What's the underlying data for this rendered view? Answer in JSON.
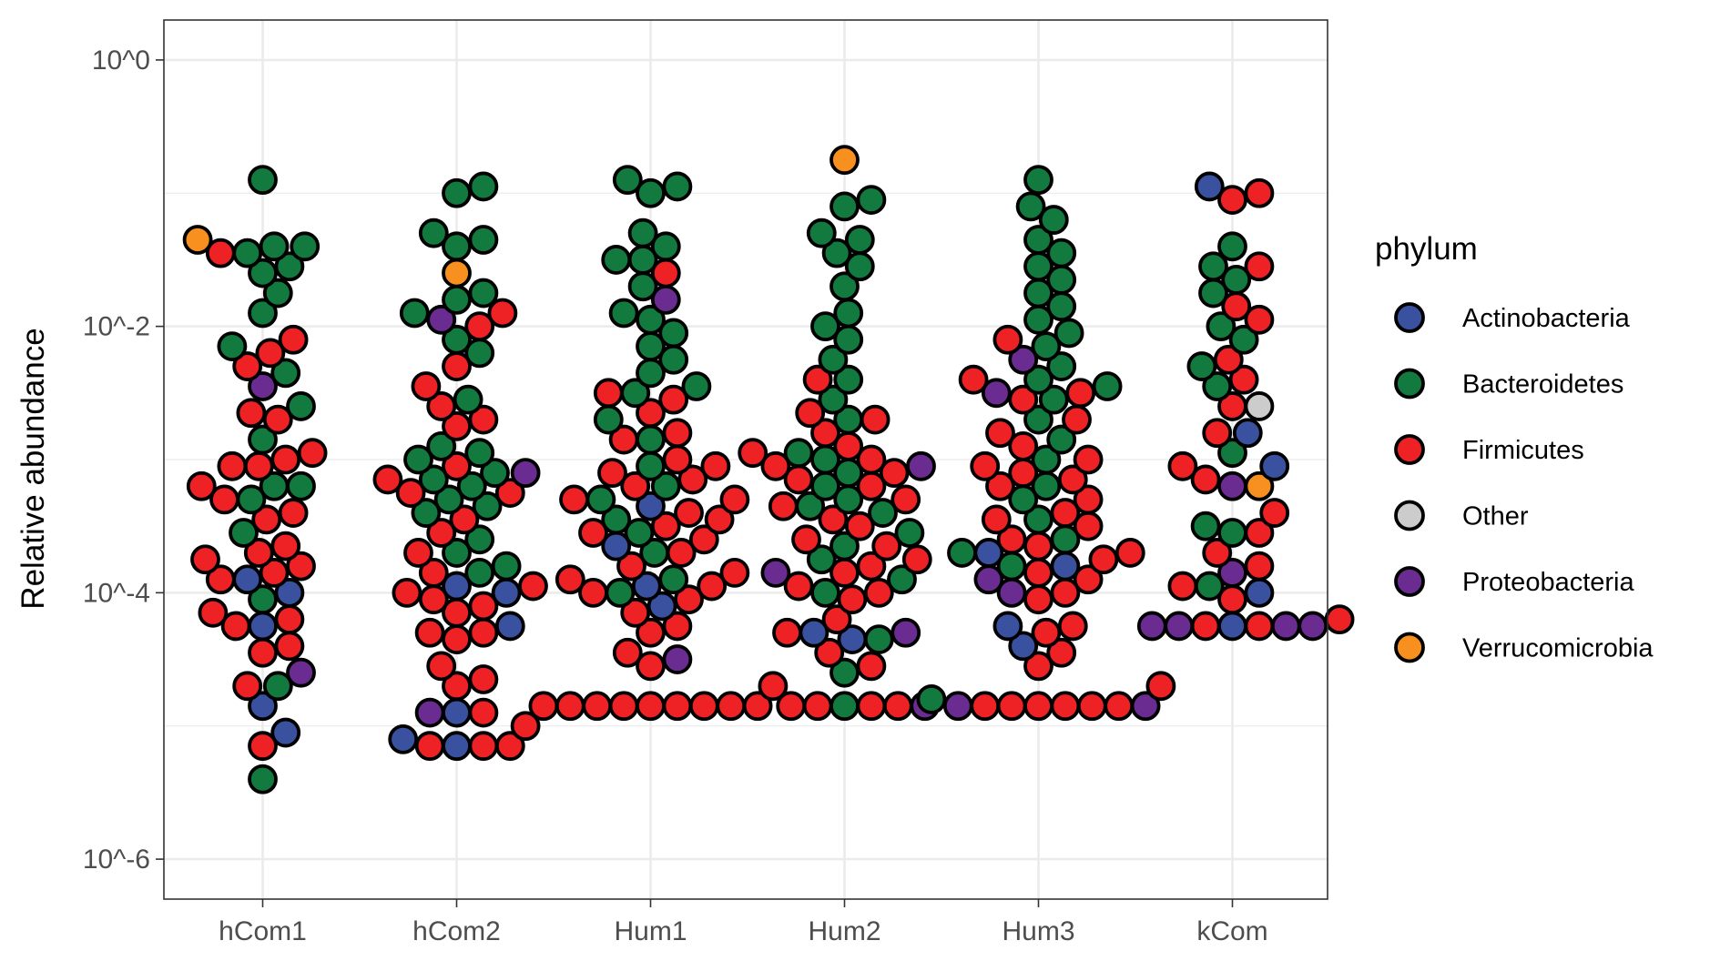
{
  "chart_data": {
    "type": "scatter",
    "subtype": "beeswarm",
    "title": "",
    "xlabel": "",
    "ylabel": "Relative abundance",
    "y_scale": "log10",
    "ylim_log10": [
      -6.3,
      0.3
    ],
    "y_ticks": [
      {
        "value": -6,
        "label": "10^-6"
      },
      {
        "value": -4,
        "label": "10^-4"
      },
      {
        "value": -2,
        "label": "10^-2"
      },
      {
        "value": 0,
        "label": "10^0"
      }
    ],
    "categories": [
      "hCom1",
      "hCom2",
      "Hum1",
      "Hum2",
      "Hum3",
      "kCom"
    ],
    "grid": true,
    "legend": {
      "title": "phylum",
      "position": "right",
      "entries": [
        {
          "name": "Actinobacteria",
          "color": "#3A51A0"
        },
        {
          "name": "Bacteroidetes",
          "color": "#137A3F"
        },
        {
          "name": "Firmicutes",
          "color": "#EE2125"
        },
        {
          "name": "Other",
          "color": "#CCCCCC"
        },
        {
          "name": "Proteobacteria",
          "color": "#6A2C91"
        },
        {
          "name": "Verrucomicrobia",
          "color": "#F7901E"
        }
      ]
    },
    "groups": {
      "hCom1": {
        "Actinobacteria": [
          -3.9,
          -4.0,
          -4.25,
          -4.85,
          -5.05
        ],
        "Bacteroidetes": [
          -0.9,
          -1.4,
          -1.4,
          -1.45,
          -1.55,
          -1.6,
          -1.75,
          -1.9,
          -2.15,
          -2.35,
          -2.6,
          -2.85,
          -3.2,
          -3.2,
          -3.3,
          -3.55,
          -4.05,
          -4.7,
          -5.4
        ],
        "Firmicutes": [
          -1.45,
          -2.1,
          -2.2,
          -2.3,
          -2.65,
          -2.7,
          -2.95,
          -3.0,
          -3.05,
          -3.05,
          -3.2,
          -3.3,
          -3.4,
          -3.45,
          -3.65,
          -3.7,
          -3.75,
          -3.8,
          -3.85,
          -3.9,
          -4.15,
          -4.2,
          -4.25,
          -4.4,
          -4.45,
          -4.7,
          -5.15
        ],
        "Proteobacteria": [
          -2.45,
          -4.6
        ],
        "Verrucomicrobia": [
          -1.35
        ]
      },
      "hCom2": {
        "Actinobacteria": [
          -3.95,
          -4.0,
          -4.25,
          -4.9,
          -5.1,
          -5.15
        ],
        "Bacteroidetes": [
          -0.95,
          -1.0,
          -1.3,
          -1.35,
          -1.4,
          -1.75,
          -1.8,
          -1.9,
          -2.1,
          -2.2,
          -2.55,
          -2.9,
          -2.95,
          -3.0,
          -3.1,
          -3.15,
          -3.2,
          -3.3,
          -3.35,
          -3.4,
          -3.6,
          -3.7,
          -3.8,
          -3.85
        ],
        "Firmicutes": [
          -1.9,
          -2.0,
          -2.3,
          -2.45,
          -2.6,
          -2.7,
          -2.75,
          -3.05,
          -3.15,
          -3.25,
          -3.25,
          -3.45,
          -3.55,
          -3.7,
          -3.85,
          -3.95,
          -4.0,
          -4.05,
          -4.1,
          -4.15,
          -4.3,
          -4.3,
          -4.35,
          -4.55,
          -4.65,
          -4.7,
          -4.9,
          -5.0,
          -5.15,
          -5.15,
          -5.15
        ],
        "Proteobacteria": [
          -1.95,
          -3.1,
          -4.9
        ],
        "Verrucomicrobia": [
          -1.6
        ]
      },
      "Hum1": {
        "Actinobacteria": [
          -3.35,
          -3.65,
          -3.95,
          -4.1
        ],
        "Bacteroidetes": [
          -0.9,
          -0.95,
          -1.0,
          -1.3,
          -1.4,
          -1.5,
          -1.5,
          -1.7,
          -1.9,
          -1.95,
          -2.05,
          -2.15,
          -2.25,
          -2.35,
          -2.45,
          -2.5,
          -2.7,
          -2.85,
          -3.05,
          -3.2,
          -3.3,
          -3.45,
          -3.55,
          -3.7,
          -3.9,
          -4.0
        ],
        "Firmicutes": [
          -1.6,
          -2.5,
          -2.55,
          -2.65,
          -2.8,
          -2.85,
          -3.0,
          -3.05,
          -3.1,
          -3.15,
          -3.2,
          -3.3,
          -3.3,
          -3.4,
          -3.45,
          -3.5,
          -3.55,
          -3.6,
          -3.7,
          -3.8,
          -3.85,
          -3.9,
          -3.95,
          -4.0,
          -4.05,
          -4.15,
          -4.25,
          -4.3,
          -4.45,
          -4.55,
          -4.7,
          -4.85,
          -4.85,
          -4.85,
          -4.85,
          -4.85,
          -4.85,
          -4.85,
          -4.85,
          -4.85
        ],
        "Proteobacteria": [
          -1.8,
          -4.5
        ]
      },
      "Hum2": {
        "Actinobacteria": [
          -4.3,
          -4.35
        ],
        "Bacteroidetes": [
          -1.05,
          -1.1,
          -1.3,
          -1.35,
          -1.45,
          -1.55,
          -1.7,
          -1.9,
          -2.0,
          -2.1,
          -2.25,
          -2.4,
          -2.55,
          -2.7,
          -2.95,
          -3.0,
          -3.1,
          -3.2,
          -3.3,
          -3.35,
          -3.4,
          -3.55,
          -3.65,
          -3.75,
          -3.9,
          -4.0,
          -4.35,
          -4.6,
          -4.85
        ],
        "Firmicutes": [
          -2.4,
          -2.65,
          -2.7,
          -2.8,
          -2.9,
          -2.95,
          -3.0,
          -3.05,
          -3.1,
          -3.15,
          -3.2,
          -3.3,
          -3.35,
          -3.45,
          -3.5,
          -3.6,
          -3.65,
          -3.75,
          -3.8,
          -3.85,
          -3.95,
          -4.0,
          -4.05,
          -4.2,
          -4.3,
          -4.45,
          -4.55,
          -4.85,
          -4.85,
          -4.85,
          -4.85
        ],
        "Proteobacteria": [
          -3.05,
          -3.85,
          -4.3,
          -4.85
        ],
        "Verrucomicrobia": [
          -0.75
        ]
      },
      "Hum3": {
        "Actinobacteria": [
          -3.7,
          -3.8,
          -4.25,
          -4.4
        ],
        "Bacteroidetes": [
          -0.9,
          -1.1,
          -1.2,
          -1.35,
          -1.45,
          -1.55,
          -1.65,
          -1.75,
          -1.85,
          -1.95,
          -2.05,
          -2.15,
          -2.3,
          -2.4,
          -2.45,
          -2.55,
          -2.7,
          -2.85,
          -3.0,
          -3.2,
          -3.3,
          -3.45,
          -3.6,
          -3.7,
          -3.8,
          -4.8
        ],
        "Firmicutes": [
          -2.1,
          -2.4,
          -2.5,
          -2.55,
          -2.7,
          -2.8,
          -2.9,
          -3.0,
          -3.05,
          -3.1,
          -3.15,
          -3.2,
          -3.3,
          -3.4,
          -3.45,
          -3.5,
          -3.6,
          -3.65,
          -3.7,
          -3.75,
          -3.85,
          -3.9,
          -4.0,
          -4.05,
          -4.25,
          -4.3,
          -4.45,
          -4.55,
          -4.7,
          -4.85,
          -4.85,
          -4.85,
          -4.85,
          -4.85,
          -4.85
        ],
        "Proteobacteria": [
          -2.25,
          -2.5,
          -3.9,
          -4.0,
          -4.85,
          -4.85
        ]
      },
      "kCom": {
        "Actinobacteria": [
          -0.95,
          -2.8,
          -3.05,
          -4.0,
          -4.25
        ],
        "Bacteroidetes": [
          -1.55,
          -1.4,
          -1.65,
          -1.75,
          -2.0,
          -2.1,
          -2.3,
          -2.45,
          -2.95,
          -3.5,
          -3.55,
          -3.95
        ],
        "Firmicutes": [
          -1.0,
          -1.05,
          -1.55,
          -1.85,
          -1.95,
          -2.25,
          -2.4,
          -2.6,
          -2.8,
          -3.05,
          -3.15,
          -3.4,
          -3.55,
          -3.7,
          -3.8,
          -3.95,
          -4.05,
          -4.2,
          -4.25,
          -4.25
        ],
        "Other": [
          -2.6
        ],
        "Proteobacteria": [
          -3.2,
          -3.85,
          -4.25,
          -4.25,
          -4.25,
          -4.25
        ],
        "Verrucomicrobia": [
          -3.2
        ]
      }
    }
  }
}
